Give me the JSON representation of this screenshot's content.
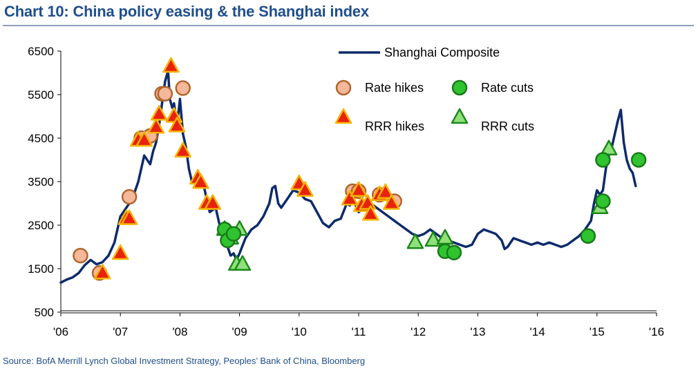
{
  "title": "Chart 10: China policy easing & the Shanghai index",
  "source": "Source: BofA Merrill Lynch  Global Investment Strategy, Peoples’ Bank of China, Bloomberg",
  "colors": {
    "line": "#0d2a6b",
    "rate_hike_fill": "#f5b89a",
    "rate_hike_stroke": "#b0652d",
    "rrr_hike_fill": "#e8220f",
    "rrr_hike_stroke": "#f5b400",
    "rate_cut_fill": "#2fc42f",
    "rate_cut_stroke": "#1a7a1a",
    "rrr_cut_fill": "#8fe07a",
    "rrr_cut_stroke": "#1a8a1a",
    "title": "#1f4e8c"
  },
  "chart_data": {
    "type": "line",
    "title": "Chart 10: China policy easing & the Shanghai index",
    "xlabel": "",
    "ylabel": "",
    "xlim": [
      2006,
      2016
    ],
    "ylim": [
      500,
      6500
    ],
    "yticks": [
      500,
      1500,
      2500,
      3500,
      4500,
      5500,
      6500
    ],
    "ytick_labels": [
      "500",
      "1500",
      "2500",
      "3500",
      "4500",
      "5500",
      "6500"
    ],
    "xticks": [
      2006,
      2007,
      2008,
      2009,
      2010,
      2011,
      2012,
      2013,
      2014,
      2015,
      2016
    ],
    "xtick_labels": [
      "'06",
      "'07",
      "'08",
      "'09",
      "'10",
      "'11",
      "'12",
      "'13",
      "'14",
      "'15",
      "'16"
    ],
    "legend": {
      "line": "Shanghai Composite",
      "rate_hikes": "Rate hikes",
      "rate_cuts": "Rate cuts",
      "rrr_hikes": "RRR hikes",
      "rrr_cuts": "RRR cuts"
    },
    "series": [
      {
        "name": "Shanghai Composite",
        "x": [
          2006.0,
          2006.1,
          2006.2,
          2006.3,
          2006.4,
          2006.5,
          2006.6,
          2006.7,
          2006.8,
          2006.9,
          2007.0,
          2007.1,
          2007.2,
          2007.3,
          2007.4,
          2007.5,
          2007.55,
          2007.6,
          2007.65,
          2007.7,
          2007.75,
          2007.8,
          2007.83,
          2007.87,
          2007.9,
          2007.95,
          2008.0,
          2008.05,
          2008.1,
          2008.15,
          2008.2,
          2008.3,
          2008.4,
          2008.5,
          2008.6,
          2008.7,
          2008.8,
          2008.85,
          2008.9,
          2008.95,
          2009.0,
          2009.1,
          2009.2,
          2009.3,
          2009.4,
          2009.5,
          2009.55,
          2009.6,
          2009.65,
          2009.7,
          2009.8,
          2009.9,
          2010.0,
          2010.1,
          2010.2,
          2010.3,
          2010.4,
          2010.5,
          2010.6,
          2010.7,
          2010.8,
          2010.85,
          2010.9,
          2011.0,
          2011.1,
          2011.2,
          2011.3,
          2011.4,
          2011.5,
          2011.6,
          2011.7,
          2011.8,
          2011.9,
          2012.0,
          2012.1,
          2012.2,
          2012.3,
          2012.4,
          2012.5,
          2012.6,
          2012.7,
          2012.8,
          2012.9,
          2013.0,
          2013.1,
          2013.2,
          2013.3,
          2013.4,
          2013.45,
          2013.5,
          2013.6,
          2013.7,
          2013.8,
          2013.9,
          2014.0,
          2014.1,
          2014.2,
          2014.3,
          2014.4,
          2014.5,
          2014.6,
          2014.7,
          2014.8,
          2014.85,
          2014.9,
          2014.95,
          2015.0,
          2015.05,
          2015.1,
          2015.15,
          2015.2,
          2015.25,
          2015.3,
          2015.35,
          2015.4,
          2015.45,
          2015.5,
          2015.55,
          2015.6,
          2015.65
        ],
        "values": [
          1180,
          1250,
          1300,
          1400,
          1580,
          1700,
          1600,
          1650,
          1800,
          2100,
          2700,
          2900,
          3100,
          3500,
          4100,
          3900,
          4200,
          4400,
          4800,
          5300,
          5800,
          6050,
          5400,
          5200,
          5300,
          4800,
          5400,
          4600,
          4300,
          3800,
          3500,
          3600,
          3400,
          2800,
          2900,
          2300,
          2000,
          1800,
          1850,
          1700,
          1850,
          2200,
          2400,
          2500,
          2700,
          3000,
          3350,
          3400,
          3000,
          2900,
          3100,
          3300,
          3250,
          3100,
          3050,
          2800,
          2550,
          2450,
          2600,
          2650,
          3000,
          2950,
          3100,
          2800,
          2900,
          3000,
          2900,
          2800,
          2700,
          2600,
          2500,
          2400,
          2300,
          2250,
          2300,
          2400,
          2300,
          2200,
          2150,
          2100,
          2050,
          2000,
          2050,
          2300,
          2400,
          2350,
          2300,
          2150,
          1950,
          2000,
          2200,
          2150,
          2100,
          2050,
          2100,
          2050,
          2100,
          2050,
          2000,
          2050,
          2150,
          2250,
          2400,
          2500,
          2600,
          3000,
          3300,
          3200,
          3300,
          3800,
          4100,
          4300,
          4600,
          4900,
          5150,
          4400,
          4000,
          3800,
          3700,
          3400
        ]
      }
    ],
    "markers": {
      "rate_hikes": [
        {
          "x": 2006.33,
          "y": 1800
        },
        {
          "x": 2006.65,
          "y": 1400
        },
        {
          "x": 2007.15,
          "y": 3150
        },
        {
          "x": 2007.35,
          "y": 4500
        },
        {
          "x": 2007.5,
          "y": 4550
        },
        {
          "x": 2007.7,
          "y": 5520
        },
        {
          "x": 2007.75,
          "y": 5520
        },
        {
          "x": 2008.05,
          "y": 5650
        },
        {
          "x": 2010.9,
          "y": 3280
        },
        {
          "x": 2011.0,
          "y": 3280
        },
        {
          "x": 2011.35,
          "y": 3200
        },
        {
          "x": 2011.6,
          "y": 3050
        }
      ],
      "rrr_hikes": [
        {
          "x": 2006.7,
          "y": 1400
        },
        {
          "x": 2007.0,
          "y": 1850
        },
        {
          "x": 2007.1,
          "y": 2650
        },
        {
          "x": 2007.15,
          "y": 2650
        },
        {
          "x": 2007.3,
          "y": 4450
        },
        {
          "x": 2007.4,
          "y": 4450
        },
        {
          "x": 2007.6,
          "y": 4750
        },
        {
          "x": 2007.65,
          "y": 5050
        },
        {
          "x": 2007.85,
          "y": 6150
        },
        {
          "x": 2007.9,
          "y": 5000
        },
        {
          "x": 2007.95,
          "y": 4780
        },
        {
          "x": 2008.05,
          "y": 4200
        },
        {
          "x": 2008.3,
          "y": 3580
        },
        {
          "x": 2008.35,
          "y": 3480
        },
        {
          "x": 2008.45,
          "y": 3000
        },
        {
          "x": 2008.55,
          "y": 3000
        },
        {
          "x": 2010.0,
          "y": 3450
        },
        {
          "x": 2010.1,
          "y": 3300
        },
        {
          "x": 2010.85,
          "y": 3100
        },
        {
          "x": 2011.0,
          "y": 3300
        },
        {
          "x": 2011.05,
          "y": 2950
        },
        {
          "x": 2011.15,
          "y": 3000
        },
        {
          "x": 2011.2,
          "y": 2750
        },
        {
          "x": 2011.35,
          "y": 3200
        },
        {
          "x": 2011.45,
          "y": 3250
        },
        {
          "x": 2011.55,
          "y": 3000
        }
      ],
      "rate_cuts": [
        {
          "x": 2008.75,
          "y": 2400
        },
        {
          "x": 2008.8,
          "y": 2150
        },
        {
          "x": 2008.9,
          "y": 2300
        },
        {
          "x": 2012.45,
          "y": 1900
        },
        {
          "x": 2012.6,
          "y": 1870
        },
        {
          "x": 2014.85,
          "y": 2250
        },
        {
          "x": 2015.1,
          "y": 4000
        },
        {
          "x": 2015.1,
          "y": 3050
        },
        {
          "x": 2015.7,
          "y": 4000
        }
      ],
      "rrr_cuts": [
        {
          "x": 2008.75,
          "y": 2400
        },
        {
          "x": 2008.85,
          "y": 2200
        },
        {
          "x": 2008.95,
          "y": 1600
        },
        {
          "x": 2009.0,
          "y": 2400
        },
        {
          "x": 2009.05,
          "y": 1600
        },
        {
          "x": 2011.95,
          "y": 2100
        },
        {
          "x": 2012.25,
          "y": 2150
        },
        {
          "x": 2012.45,
          "y": 2200
        },
        {
          "x": 2015.05,
          "y": 2900
        },
        {
          "x": 2015.2,
          "y": 4250
        }
      ]
    }
  }
}
